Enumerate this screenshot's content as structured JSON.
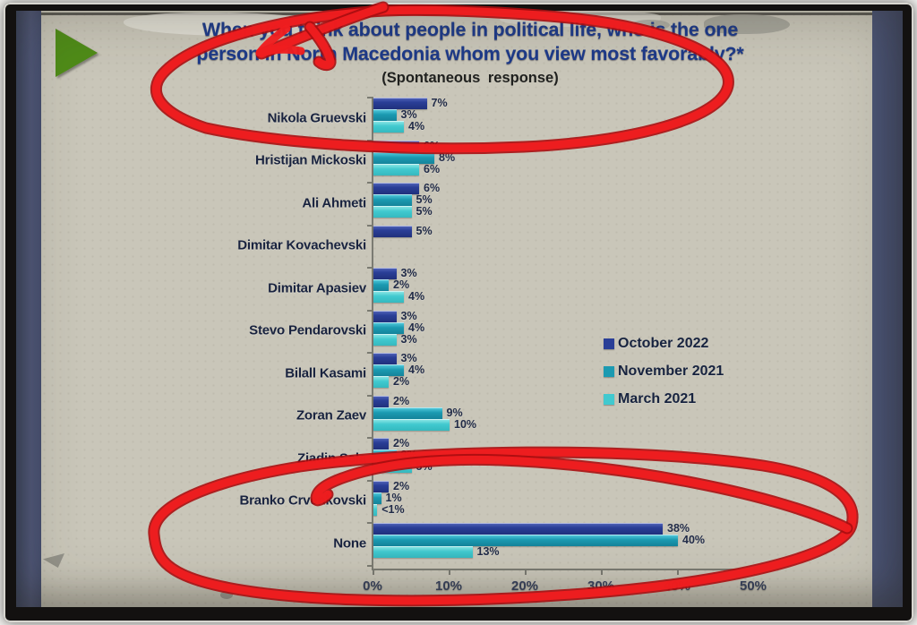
{
  "slide": {
    "title_line1": "When you think about people in political life, who is the one",
    "title_line2": "person in North Macedonia whom you view most favorably?*",
    "subtitle": "(Spontaneous response)"
  },
  "chart_data": {
    "type": "bar",
    "orientation": "horizontal",
    "title": "When you think about people in political life, who is the one person in North Macedonia whom you view most favorably?* (Spontaneous response)",
    "series": [
      {
        "name": "October 2022",
        "color": "#2a3f97"
      },
      {
        "name": "November 2021",
        "color": "#1b9ab1"
      },
      {
        "name": "March 2021",
        "color": "#41c9cf"
      }
    ],
    "categories": [
      "Nikola Gruevski",
      "Hristijan Mickoski",
      "Ali Ahmeti",
      "Dimitar Kovachevski",
      "Dimitar Apasiev",
      "Stevo Pendarovski",
      "Bilall Kasami",
      "Zoran Zaev",
      "Ziadin Sela",
      "Branko Crvenkovski",
      "None"
    ],
    "rows": [
      {
        "category": "Nikola Gruevski",
        "values": [
          7,
          3,
          4
        ],
        "labels": [
          "7%",
          "3%",
          "4%"
        ]
      },
      {
        "category": "Hristijan Mickoski",
        "values": [
          6,
          8,
          6
        ],
        "labels": [
          "6%",
          "8%",
          "6%"
        ]
      },
      {
        "category": "Ali Ahmeti",
        "values": [
          6,
          5,
          5
        ],
        "labels": [
          "6%",
          "5%",
          "5%"
        ]
      },
      {
        "category": "Dimitar Kovachevski",
        "values": [
          5,
          0,
          0
        ],
        "labels": [
          "5%",
          "",
          ""
        ]
      },
      {
        "category": "Dimitar Apasiev",
        "values": [
          3,
          2,
          4
        ],
        "labels": [
          "3%",
          "2%",
          "4%"
        ]
      },
      {
        "category": "Stevo Pendarovski",
        "values": [
          3,
          4,
          3
        ],
        "labels": [
          "3%",
          "4%",
          "3%"
        ]
      },
      {
        "category": "Bilall Kasami",
        "values": [
          3,
          4,
          2
        ],
        "labels": [
          "3%",
          "4%",
          "2%"
        ]
      },
      {
        "category": "Zoran Zaev",
        "values": [
          2,
          9,
          10
        ],
        "labels": [
          "2%",
          "9%",
          "10%"
        ]
      },
      {
        "category": "Ziadin Sela",
        "values": [
          2,
          3,
          5
        ],
        "labels": [
          "2%",
          "3%",
          "5%"
        ]
      },
      {
        "category": "Branko Crvenkovski",
        "values": [
          2,
          1,
          0.5
        ],
        "labels": [
          "2%",
          "1%",
          "<1%"
        ]
      },
      {
        "category": "None",
        "values": [
          38,
          40,
          13
        ],
        "labels": [
          "38%",
          "40%",
          "13%"
        ]
      }
    ],
    "x_ticks": [
      "0%",
      "10%",
      "20%",
      "30%",
      "40%",
      "50%"
    ],
    "xlim": [
      0,
      50
    ],
    "grid": false,
    "legend_position": "middle-right",
    "annotations": [
      "hand-drawn red circle around title and Nikola Gruevski bars",
      "hand-drawn red circle around None bars and x-axis"
    ]
  },
  "colors": {
    "slide_background": "#c9c6b9",
    "title_text": "#1d3a8a",
    "annotation_red": "#ef1d1f",
    "side_band_blue": "#4b5475",
    "play_triangle_green": "#4f8c18"
  }
}
